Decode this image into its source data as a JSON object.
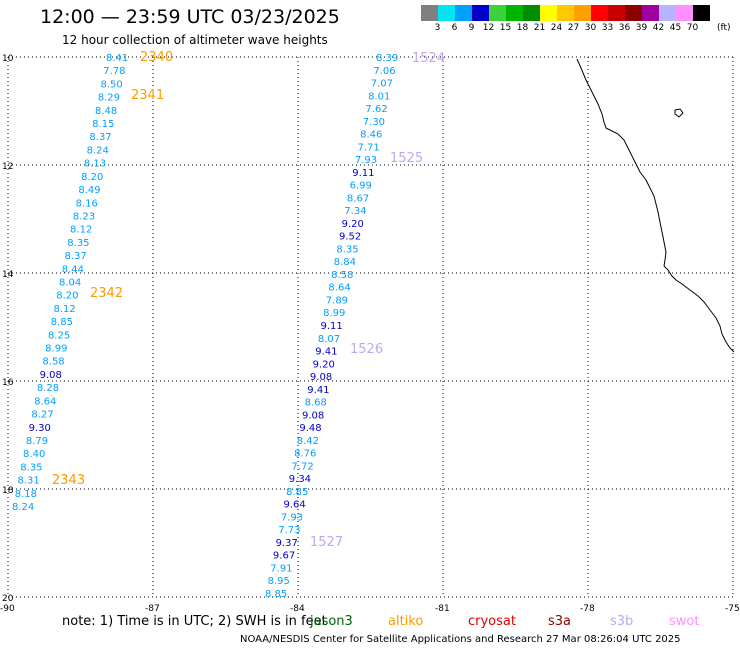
{
  "header": {
    "title": "12:00 — 23:59 UTC 03/23/2025",
    "subtitle": "12 hour collection of altimeter wave heights"
  },
  "legend": {
    "colors": [
      "#808080",
      "#00e5ee",
      "#00a0ff",
      "#0000c8",
      "#3cd23c",
      "#00b400",
      "#008c00",
      "#ffff00",
      "#ffc800",
      "#ffa000",
      "#ff0000",
      "#c80000",
      "#8c0000",
      "#a000a0",
      "#b4b4ff",
      "#ff90ff",
      "#000000"
    ],
    "labels": [
      "3",
      "6",
      "9",
      "12",
      "15",
      "18",
      "21",
      "24",
      "27",
      "30",
      "33",
      "36",
      "39",
      "42",
      "45",
      "70"
    ],
    "unit": "(ft)"
  },
  "axes": {
    "lat_ticks": [
      "10",
      "12",
      "14",
      "16",
      "18",
      "20"
    ],
    "lon_ticks": [
      "-90",
      "-87",
      "-84",
      "-81",
      "-78",
      "-75"
    ]
  },
  "passes": [
    {
      "id": "2340",
      "color": "#ff9900"
    },
    {
      "id": "2341",
      "color": "#ff9900"
    },
    {
      "id": "2342",
      "color": "#ff9900"
    },
    {
      "id": "2343",
      "color": "#ff9900"
    },
    {
      "id": "1524",
      "color": "#c0a8f0"
    },
    {
      "id": "1525",
      "color": "#c0a8f0"
    },
    {
      "id": "1526",
      "color": "#c0a8f0"
    },
    {
      "id": "1527",
      "color": "#c0a8f0"
    }
  ],
  "track_left": [
    "8.41",
    "7.78",
    "8.50",
    "8.29",
    "8.48",
    "8.15",
    "8.37",
    "8.24",
    "8.13",
    "8.20",
    "8.49",
    "8.16",
    "8.23",
    "8.12",
    "8.35",
    "8.37",
    "8.44",
    "8.04",
    "8.20",
    "8.12",
    "8.85",
    "8.25",
    "8.99",
    "8.58",
    "9.08",
    "8.28",
    "8.64",
    "8.27",
    "9.30",
    "8.79",
    "8.40",
    "8.35",
    "8.31",
    "8.18",
    "8.24"
  ],
  "track_right": [
    "8.39",
    "7.06",
    "7.07",
    "8.01",
    "7.62",
    "7.30",
    "8.46",
    "7.71",
    "7.93",
    "9.11",
    "6.99",
    "8.67",
    "7.34",
    "9.20",
    "9.52",
    "8.35",
    "8.84",
    "8.58",
    "8.64",
    "7.89",
    "8.99",
    "9.11",
    "8.07",
    "9.41",
    "9.20",
    "9.08",
    "9.41",
    "8.68",
    "9.08",
    "9.48",
    "8.42",
    "8.76",
    "7.72",
    "9.34",
    "8.85",
    "9.64",
    "7.93",
    "7.73",
    "9.37",
    "9.67",
    "7.91",
    "8.95",
    "8.85"
  ],
  "footer": {
    "note": "note:  1) Time is in UTC;  2) SWH is in feet",
    "satellites": [
      {
        "name": "jason3",
        "color": "#006400"
      },
      {
        "name": "altiko",
        "color": "#ff9900"
      },
      {
        "name": "cryosat",
        "color": "#dd0000"
      },
      {
        "name": "s3a",
        "color": "#8b0000"
      },
      {
        "name": "s3b",
        "color": "#c0a8f0"
      },
      {
        "name": "swot",
        "color": "#ff90ff"
      }
    ],
    "credit": "NOAA/NESDIS Center for Satellite Applications and Research    27 Mar 08:26:04 UTC 2025"
  }
}
